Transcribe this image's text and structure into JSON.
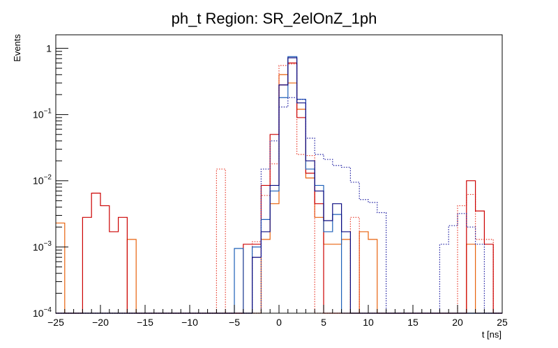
{
  "chart_data": {
    "type": "histogram",
    "title": "ph_t Region: SR_2elOnZ_1ph",
    "xlabel": "t [ns]",
    "ylabel": "Events",
    "xlim": [
      -25,
      25
    ],
    "ylim": [
      0.0001,
      1.6
    ],
    "yscale": "log",
    "bin_width": 1,
    "x_ticks": [
      "−25",
      "−20",
      "−15",
      "−10",
      "−5",
      "0",
      "5",
      "10",
      "15",
      "20",
      "25"
    ],
    "x_tick_values": [
      -25,
      -20,
      -15,
      -10,
      -5,
      0,
      5,
      10,
      15,
      20,
      25
    ],
    "y_ticks": [
      {
        "value": 0.0001,
        "base": "10",
        "exp": "−4"
      },
      {
        "value": 0.001,
        "base": "10",
        "exp": "−3"
      },
      {
        "value": 0.01,
        "base": "10",
        "exp": "−2"
      },
      {
        "value": 0.1,
        "base": "10",
        "exp": "−1"
      },
      {
        "value": 1,
        "base": "1",
        "exp": ""
      }
    ],
    "series": [
      {
        "name": "series-orange-solid",
        "color": "#e8620c",
        "style": "solid",
        "values": [
          [
            -25,
            0.0023
          ],
          [
            -17,
            0.0013
          ],
          [
            -2,
            0.0013
          ],
          [
            -1,
            0.0045
          ],
          [
            0,
            0.4
          ],
          [
            1,
            0.3
          ],
          [
            2,
            0.12
          ],
          [
            3,
            0.011
          ],
          [
            4,
            0.0028
          ],
          [
            5,
            0.0011
          ],
          [
            6,
            0.0011
          ],
          [
            7,
            0.0013
          ],
          [
            9,
            0.0017
          ],
          [
            10,
            0.0013
          ],
          [
            21,
            0.0011
          ]
        ]
      },
      {
        "name": "series-red-dotted",
        "color": "#e83a2a",
        "style": "dotted",
        "values": [
          [
            -7,
            0.015
          ],
          [
            -3,
            0.0012
          ],
          [
            -2,
            0.006
          ],
          [
            -1,
            0.018
          ],
          [
            0,
            0.55
          ],
          [
            1,
            0.58
          ],
          [
            2,
            0.025
          ],
          [
            3,
            0.024
          ],
          [
            8,
            0.0028
          ],
          [
            20,
            0.0042
          ],
          [
            21,
            0.0062
          ],
          [
            22,
            0.0013
          ],
          [
            23,
            0.0013
          ]
        ]
      },
      {
        "name": "series-red-solid",
        "color": "#cc0000",
        "style": "solid",
        "values": [
          [
            -22,
            0.0028
          ],
          [
            -21,
            0.0065
          ],
          [
            -20,
            0.0042
          ],
          [
            -19,
            0.0017
          ],
          [
            -18,
            0.0028
          ],
          [
            -4,
            0.0011
          ],
          [
            -3,
            0.0011
          ],
          [
            -2,
            0.0085
          ],
          [
            -1,
            0.05
          ],
          [
            0,
            0.28
          ],
          [
            1,
            0.6
          ],
          [
            2,
            0.09
          ],
          [
            3,
            0.013
          ],
          [
            4,
            0.0045
          ],
          [
            21,
            0.01
          ],
          [
            22,
            0.0035
          ],
          [
            23,
            0.0011
          ]
        ]
      },
      {
        "name": "series-blue-solid",
        "color": "#1c5fb8",
        "style": "solid",
        "values": [
          [
            -5,
            0.00095
          ],
          [
            -3,
            0.001
          ],
          [
            -2,
            0.0026
          ],
          [
            -1,
            0.007
          ],
          [
            0,
            0.18
          ],
          [
            1,
            0.75
          ],
          [
            2,
            0.17
          ],
          [
            3,
            0.015
          ],
          [
            4,
            0.0085
          ],
          [
            5,
            0.0017
          ],
          [
            6,
            0.0031
          ]
        ]
      },
      {
        "name": "series-navy-solid",
        "color": "#0a0a80",
        "style": "solid",
        "values": [
          [
            -3,
            0.0007
          ],
          [
            -2,
            0.0017
          ],
          [
            -1,
            0.0085
          ],
          [
            0,
            0.28
          ],
          [
            1,
            0.72
          ],
          [
            2,
            0.15
          ],
          [
            3,
            0.02
          ],
          [
            4,
            0.007
          ],
          [
            5,
            0.0025
          ],
          [
            6,
            0.0045
          ],
          [
            7,
            0.0017
          ]
        ]
      },
      {
        "name": "series-navy-dotted",
        "color": "#1a1aa0",
        "style": "dotted",
        "values": [
          [
            -2,
            0.015
          ],
          [
            -1,
            0.04
          ],
          [
            0,
            0.13
          ],
          [
            1,
            0.18
          ],
          [
            2,
            0.17
          ],
          [
            3,
            0.044
          ],
          [
            4,
            0.025
          ],
          [
            5,
            0.021
          ],
          [
            6,
            0.017
          ],
          [
            7,
            0.016
          ],
          [
            8,
            0.0095
          ],
          [
            9,
            0.0052
          ],
          [
            10,
            0.0047
          ],
          [
            11,
            0.0033
          ],
          [
            18,
            0.0011
          ],
          [
            19,
            0.0021
          ],
          [
            20,
            0.0032
          ],
          [
            21,
            0.002
          ],
          [
            22,
            0.0011
          ]
        ]
      }
    ]
  }
}
